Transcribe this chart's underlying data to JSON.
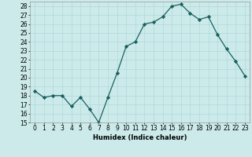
{
  "x": [
    0,
    1,
    2,
    3,
    4,
    5,
    6,
    7,
    8,
    9,
    10,
    11,
    12,
    13,
    14,
    15,
    16,
    17,
    18,
    19,
    20,
    21,
    22,
    23
  ],
  "y": [
    18.5,
    17.8,
    18.0,
    18.0,
    16.8,
    17.8,
    16.5,
    15.0,
    17.8,
    20.5,
    23.5,
    24.0,
    26.0,
    26.2,
    26.8,
    28.0,
    28.2,
    27.2,
    26.5,
    26.8,
    24.8,
    23.2,
    21.8,
    20.2
  ],
  "line_color": "#1a6060",
  "marker": "D",
  "marker_size": 2.2,
  "bg_color": "#cceaea",
  "grid_color": "#b0d8d8",
  "xlabel": "Humidex (Indice chaleur)",
  "ylabel_ticks": [
    15,
    16,
    17,
    18,
    19,
    20,
    21,
    22,
    23,
    24,
    25,
    26,
    27,
    28
  ],
  "ylim": [
    15,
    28.5
  ],
  "xlim": [
    -0.5,
    23.5
  ],
  "tick_fontsize": 5.5,
  "xlabel_fontsize": 6.0
}
